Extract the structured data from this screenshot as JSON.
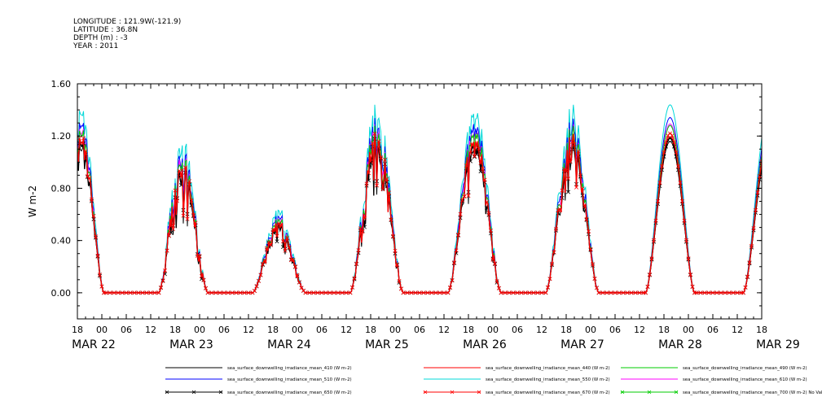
{
  "header": {
    "longitude": "LONGITUDE : 121.9W(-121.9)",
    "latitude": "LATITUDE : 36.8N",
    "depth": "DEPTH (m) : -3",
    "year": "YEAR : 2011"
  },
  "chart_data": {
    "type": "line",
    "title": "",
    "ylabel": "W m-2",
    "xlabel": "",
    "ylim": [
      -0.2,
      1.6
    ],
    "yticks": [
      0.0,
      0.4,
      0.8,
      1.2,
      1.6
    ],
    "ytick_labels": [
      "0.00",
      "0.40",
      "0.80",
      "1.20",
      "1.60"
    ],
    "x_start_hour": -6,
    "x_end_hour": 162,
    "xtick_hours": [
      -6,
      0,
      6,
      12,
      18,
      24,
      30,
      36,
      42,
      48,
      54,
      60,
      66,
      72,
      78,
      84,
      90,
      96,
      102,
      108,
      114,
      120,
      126,
      132,
      138,
      144,
      150,
      156,
      162
    ],
    "xtick_labels": [
      "18",
      "00",
      "06",
      "12",
      "18",
      "00",
      "06",
      "12",
      "18",
      "00",
      "06",
      "12",
      "18",
      "00",
      "06",
      "12",
      "18",
      "00",
      "06",
      "12",
      "18",
      "00",
      "06",
      "12",
      "18",
      "00",
      "06",
      "12",
      "18"
    ],
    "date_labels": [
      {
        "text": "MAR 22",
        "hour": -2
      },
      {
        "text": "MAR 23",
        "hour": 22
      },
      {
        "text": "MAR 24",
        "hour": 46
      },
      {
        "text": "MAR 25",
        "hour": 70
      },
      {
        "text": "MAR 26",
        "hour": 94
      },
      {
        "text": "MAR 27",
        "hour": 118
      },
      {
        "text": "MAR 28",
        "hour": 142
      },
      {
        "text": "MAR 29",
        "hour": 166
      }
    ],
    "days": [
      {
        "peak_hour": -5,
        "start": -9,
        "end": 0.5,
        "amp": 1.22,
        "noise": 0.15
      },
      {
        "peak_hour": 19.5,
        "start": 14,
        "end": 26,
        "amp": 1.05,
        "noise": 0.45
      },
      {
        "peak_hour": 43.5,
        "start": 37,
        "end": 50,
        "amp": 0.55,
        "noise": 0.35
      },
      {
        "peak_hour": 67.5,
        "start": 61,
        "end": 74,
        "amp": 1.25,
        "noise": 0.35
      },
      {
        "peak_hour": 91.5,
        "start": 85,
        "end": 98,
        "amp": 1.25,
        "noise": 0.35
      },
      {
        "peak_hour": 115.5,
        "start": 109,
        "end": 122,
        "amp": 1.25,
        "noise": 0.3
      },
      {
        "peak_hour": 139.5,
        "start": 133.5,
        "end": 145.5,
        "amp": 1.22,
        "noise": 0.0
      },
      {
        "peak_hour": 164,
        "start": 157.5,
        "end": 170,
        "amp": 1.22,
        "noise": 0.0
      }
    ],
    "series": [
      {
        "name": "sea_surface_downwelling_irradiance_mean_410 (W m-2)",
        "color": "#000000",
        "scale": 0.95,
        "marker": "line"
      },
      {
        "name": "sea_surface_downwelling_irradiance_mean_440 (W m-2)",
        "color": "#ff0000",
        "scale": 0.98,
        "marker": "line"
      },
      {
        "name": "sea_surface_downwelling_irradiance_mean_490 (W m-2)",
        "color": "#00cc00",
        "scale": 1.05,
        "marker": "line"
      },
      {
        "name": "sea_surface_downwelling_irradiance_mean_510 (W m-2)",
        "color": "#0000ff",
        "scale": 1.1,
        "marker": "line"
      },
      {
        "name": "sea_surface_downwelling_irradiance_mean_550 (W m-2)",
        "color": "#00d8d8",
        "scale": 1.18,
        "marker": "line"
      },
      {
        "name": "sea_surface_downwelling_irradiance_mean_610 (W m-2)",
        "color": "#ff00ff",
        "scale": 1.06,
        "marker": "line"
      },
      {
        "name": "sea_surface_downwelling_irradiance_mean_650 (W m-2)",
        "color": "#000000",
        "scale": 0.97,
        "marker": "x"
      },
      {
        "name": "sea_surface_downwelling_irradiance_mean_670 (W m-2)",
        "color": "#ff0000",
        "scale": 1.0,
        "marker": "x"
      },
      {
        "name": "sea_surface_downwelling_irradiance_mean_700 (W m-2) No Valid Data",
        "color": "#00cc00",
        "scale": 0,
        "marker": "x"
      }
    ]
  }
}
